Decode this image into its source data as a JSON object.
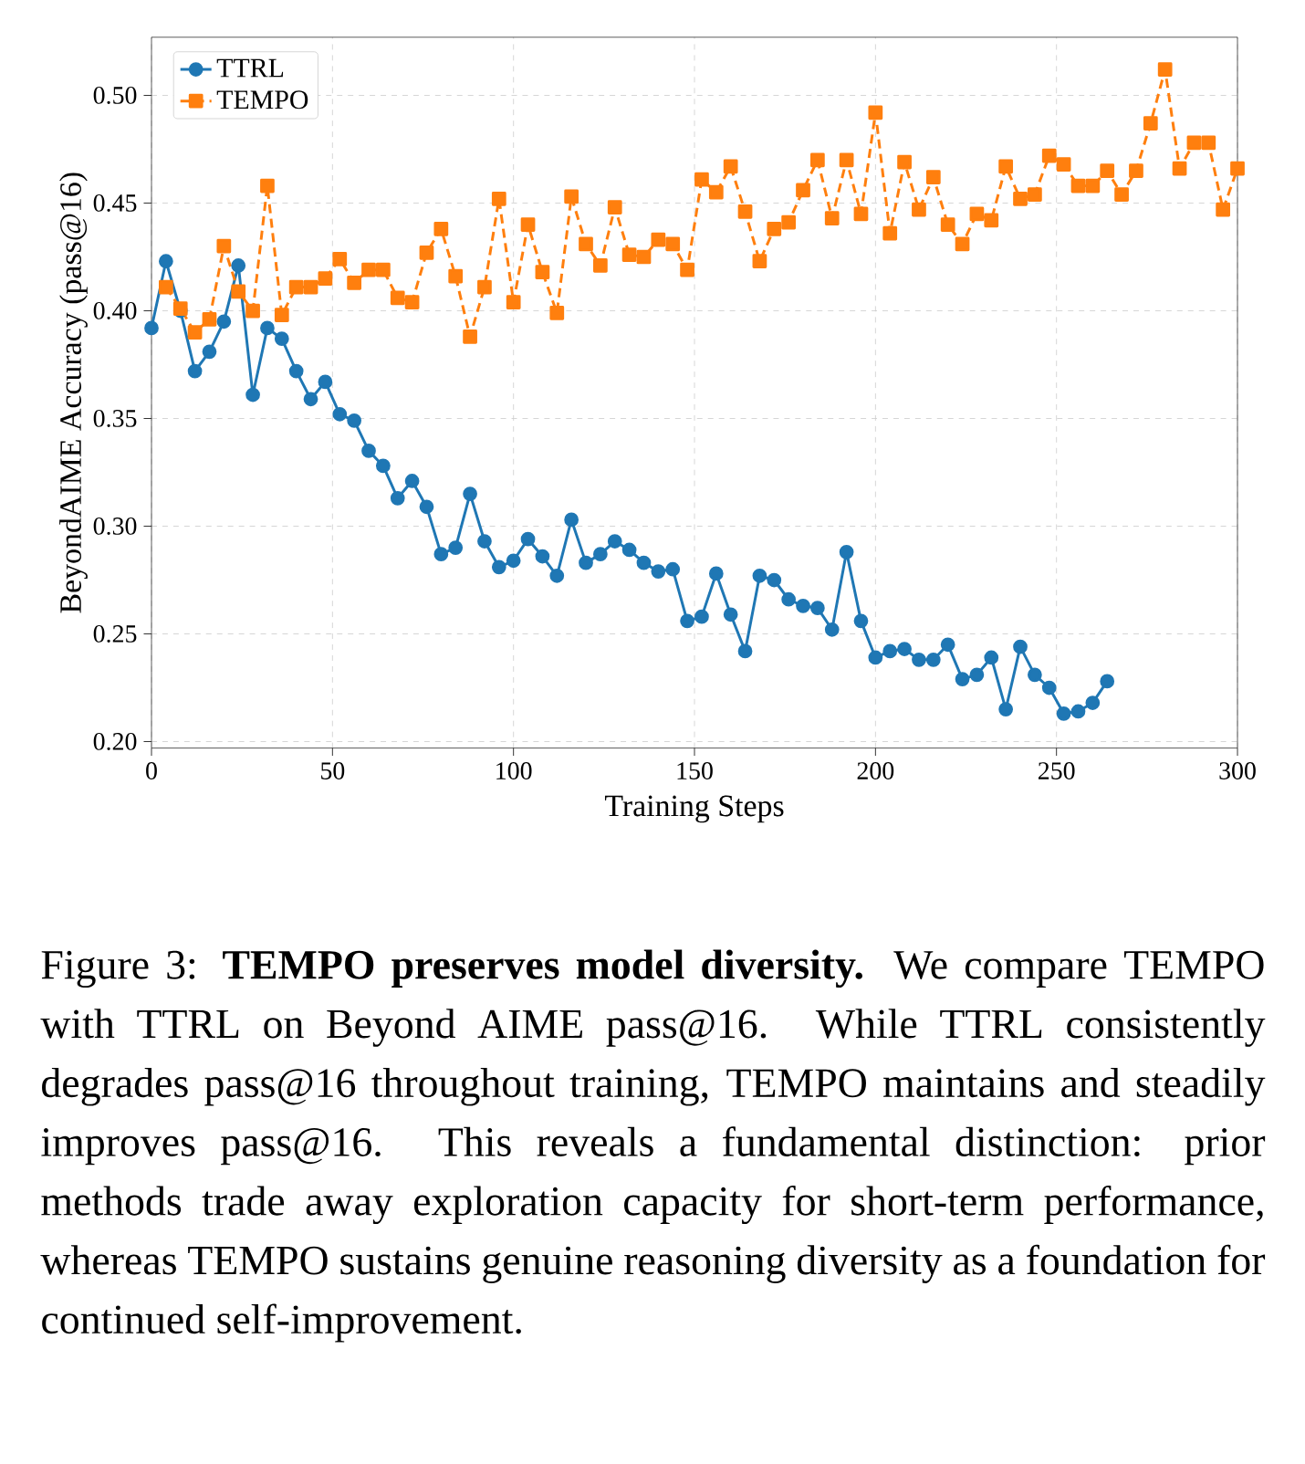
{
  "chart_data": {
    "type": "line",
    "xlabel": "Training Steps",
    "ylabel": "BeyondAIME Accuracy (pass@16)",
    "xlim": [
      0,
      300
    ],
    "ylim": [
      0.197,
      0.527
    ],
    "xticks": [
      0,
      50,
      100,
      150,
      200,
      250,
      300
    ],
    "yticks": [
      {
        "value": 0.2,
        "label": "0.20"
      },
      {
        "value": 0.25,
        "label": "0.25"
      },
      {
        "value": 0.3,
        "label": "0.30"
      },
      {
        "value": 0.35,
        "label": "0.35"
      },
      {
        "value": 0.4,
        "label": "0.40"
      },
      {
        "value": 0.45,
        "label": "0.45"
      },
      {
        "value": 0.5,
        "label": "0.50"
      }
    ],
    "grid": true,
    "legend": "top left",
    "series": [
      {
        "name": "TTRL",
        "color": "#1f77b4",
        "marker": "circle",
        "line_style": "solid",
        "x": [
          0,
          4,
          8,
          12,
          16,
          20,
          24,
          28,
          32,
          36,
          40,
          44,
          48,
          52,
          56,
          60,
          64,
          68,
          72,
          76,
          80,
          84,
          88,
          92,
          96,
          100,
          104,
          108,
          112,
          116,
          120,
          124,
          128,
          132,
          136,
          140,
          144,
          148,
          152,
          156,
          160,
          164,
          168,
          172,
          176,
          180,
          184,
          188,
          192,
          196,
          200,
          204,
          208,
          212,
          216,
          220,
          224,
          228,
          232,
          236,
          240,
          244,
          248,
          252,
          256,
          260,
          264
        ],
        "values": [
          0.392,
          0.423,
          0.4,
          0.372,
          0.381,
          0.395,
          0.421,
          0.361,
          0.392,
          0.387,
          0.372,
          0.359,
          0.367,
          0.352,
          0.349,
          0.335,
          0.328,
          0.313,
          0.321,
          0.309,
          0.287,
          0.29,
          0.315,
          0.293,
          0.281,
          0.284,
          0.294,
          0.286,
          0.277,
          0.303,
          0.283,
          0.287,
          0.293,
          0.289,
          0.283,
          0.279,
          0.28,
          0.256,
          0.258,
          0.278,
          0.259,
          0.242,
          0.277,
          0.275,
          0.266,
          0.263,
          0.262,
          0.252,
          0.288,
          0.256,
          0.239,
          0.242,
          0.243,
          0.238,
          0.238,
          0.245,
          0.229,
          0.231,
          0.239,
          0.215,
          0.244,
          0.231,
          0.225,
          0.213,
          0.214,
          0.218,
          0.228
        ]
      },
      {
        "name": "TEMPO",
        "color": "#ff7f0e",
        "marker": "square",
        "line_style": "dashed",
        "x": [
          4,
          8,
          12,
          16,
          20,
          24,
          28,
          32,
          36,
          40,
          44,
          48,
          52,
          56,
          60,
          64,
          68,
          72,
          76,
          80,
          84,
          88,
          92,
          96,
          100,
          104,
          108,
          112,
          116,
          120,
          124,
          128,
          132,
          136,
          140,
          144,
          148,
          152,
          156,
          160,
          164,
          168,
          172,
          176,
          180,
          184,
          188,
          192,
          196,
          200,
          204,
          208,
          212,
          216,
          220,
          224,
          228,
          232,
          236,
          240,
          244,
          248,
          252,
          256,
          260,
          264,
          268,
          272,
          276,
          280,
          284,
          288,
          292,
          296,
          300
        ],
        "values": [
          0.411,
          0.401,
          0.39,
          0.396,
          0.43,
          0.409,
          0.4,
          0.458,
          0.398,
          0.411,
          0.411,
          0.415,
          0.424,
          0.413,
          0.419,
          0.419,
          0.406,
          0.404,
          0.427,
          0.438,
          0.416,
          0.388,
          0.411,
          0.452,
          0.404,
          0.44,
          0.418,
          0.399,
          0.453,
          0.431,
          0.421,
          0.448,
          0.426,
          0.425,
          0.433,
          0.431,
          0.419,
          0.461,
          0.455,
          0.467,
          0.446,
          0.423,
          0.438,
          0.441,
          0.456,
          0.47,
          0.443,
          0.47,
          0.445,
          0.492,
          0.436,
          0.469,
          0.447,
          0.462,
          0.44,
          0.431,
          0.445,
          0.442,
          0.467,
          0.452,
          0.454,
          0.472,
          0.468,
          0.458,
          0.458,
          0.465,
          0.454,
          0.465,
          0.487,
          0.512,
          0.466,
          0.478,
          0.478,
          0.447,
          0.466
        ]
      }
    ],
    "annotations": [
      "Figure 3: **TEMPO preserves model diversity.** We compare TEMPO with TTRL on Beyond AIME pass@16. While TTRL consistently degrades pass@16 throughout training, TEMPO maintains and steadily improves pass@16. This reveals a fundamental distinction: prior methods trade away exploration capacity for short-term performance, whereas TEMPO sustains genuine reasoning diversity as a foundation for continued self-improvement."
    ]
  }
}
